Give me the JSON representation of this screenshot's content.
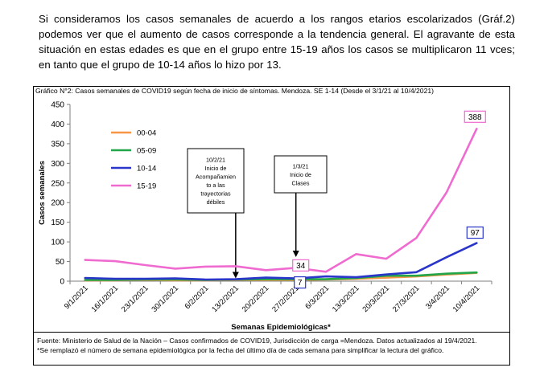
{
  "intro_text": "Si consideramos los casos semanales de acuerdo a los rangos etarios escolarizados (Gráf.2) podemos ver que el aumento de casos corresponde a la tendencia general. El agravante de esta situación en estas edades es que en el grupo entre 15-19 años los casos se multiplicaron 11 vces; en tanto que el grupo de 10-14 años lo hizo por 13.",
  "figure_title": "Gráfico N°2: Casos semanales de COVID19 según fecha de inicio de síntomas. Mendoza. SE 1-14 (Desde el 3/1/21 al 10/4/2021)",
  "footer": {
    "source": "Fuente: Ministerio de Salud de la Nación – Casos confirmados de COVID19, Jurisdicción de carga =Mendoza. Datos actualizados al 19/4/2021.",
    "note": "*Se remplazó el número de semana epidemiológica por la fecha del último día de cada semana para simplificar la lectura del gráfico."
  },
  "chart_data": {
    "type": "line",
    "title": "Gráfico N°2: Casos semanales de COVID19 según fecha de inicio de síntomas. Mendoza. SE 1-14 (Desde el 3/1/21 al 10/4/2021)",
    "xlabel": "Semanas Epidemiológicas*",
    "ylabel": "Casos semanales",
    "ylim": [
      0,
      450
    ],
    "yticks": [
      0,
      50,
      100,
      150,
      200,
      250,
      300,
      350,
      400,
      450
    ],
    "grid": false,
    "legend_position": "top-left",
    "x": [
      "9/1/2021",
      "16/1/2021",
      "23/1/2021",
      "30/1/2021",
      "6/2/2021",
      "13/2/2021",
      "20/2/2021",
      "27/2/2021",
      "6/3/2021",
      "13/3/2021",
      "20/3/2021",
      "27/3/2021",
      "3/4/2021",
      "10/4/2021"
    ],
    "series": [
      {
        "name": "00-04",
        "color": "#f79646",
        "values": [
          2,
          2,
          3,
          2,
          2,
          3,
          3,
          3,
          4,
          6,
          9,
          12,
          17,
          21
        ]
      },
      {
        "name": "05-09",
        "color": "#22a64a",
        "values": [
          3,
          3,
          4,
          4,
          3,
          4,
          5,
          5,
          5,
          8,
          14,
          14,
          19,
          22
        ]
      },
      {
        "name": "10-14",
        "color": "#2a35c9",
        "values": [
          8,
          6,
          6,
          7,
          4,
          5,
          9,
          7,
          12,
          10,
          17,
          23,
          61,
          97
        ]
      },
      {
        "name": "15-19",
        "color": "#ef6bd0",
        "values": [
          54,
          51,
          41,
          32,
          37,
          38,
          28,
          34,
          24,
          69,
          57,
          110,
          226,
          388
        ]
      }
    ],
    "data_labels": [
      {
        "series": "15-19",
        "x": "27/2/2021",
        "value": 34,
        "text": "34"
      },
      {
        "series": "10-14",
        "x": "27/2/2021",
        "value": 7,
        "text": "7"
      },
      {
        "series": "15-19",
        "x": "10/4/2021",
        "value": 388,
        "text": "388"
      },
      {
        "series": "10-14",
        "x": "10/4/2021",
        "value": 97,
        "text": "97"
      }
    ],
    "annotations": [
      {
        "x": "13/2/2021",
        "lines": [
          "10/2/21",
          "Inicio de",
          "Acompañamien",
          "to a las",
          "trayectorias",
          "débiles"
        ]
      },
      {
        "x": "27/2/2021",
        "lines": [
          "1/3/21",
          "Inicio de",
          "Clases"
        ]
      }
    ]
  }
}
